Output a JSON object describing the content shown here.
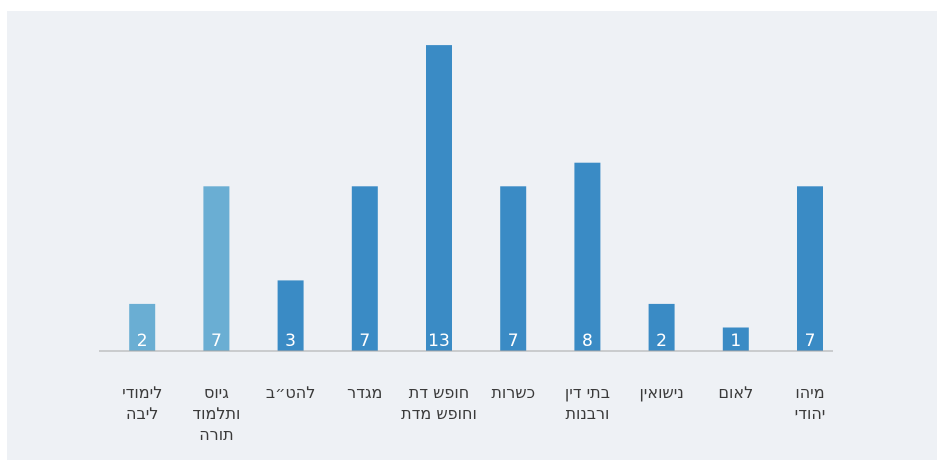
{
  "chart_data": {
    "type": "bar",
    "categories": [
      [
        "מיהו",
        "יהודי"
      ],
      [
        "לאום"
      ],
      [
        "נישואין"
      ],
      [
        "בתי דין",
        "ורבנות"
      ],
      [
        "כשרות"
      ],
      [
        "חופש דת",
        "וחופש מדת"
      ],
      [
        "מגדר"
      ],
      [
        "להט״ב"
      ],
      [
        "גיוס",
        "ותלמוד",
        "תורה"
      ],
      [
        "לימודי",
        "ליבה"
      ]
    ],
    "values": [
      7,
      1,
      2,
      8,
      7,
      13,
      7,
      3,
      7,
      2
    ],
    "ylim": [
      0,
      13.3
    ],
    "bar_colors": [
      "#3a8bc5",
      "#3a8bc5",
      "#3a8bc5",
      "#3a8bc5",
      "#3a8bc5",
      "#3a8bc5",
      "#3a8bc5",
      "#3a8bc5",
      "#6aaed3",
      "#6aaed3"
    ],
    "axis_color": "#a6a6a6",
    "grid": false,
    "legend": "none"
  }
}
